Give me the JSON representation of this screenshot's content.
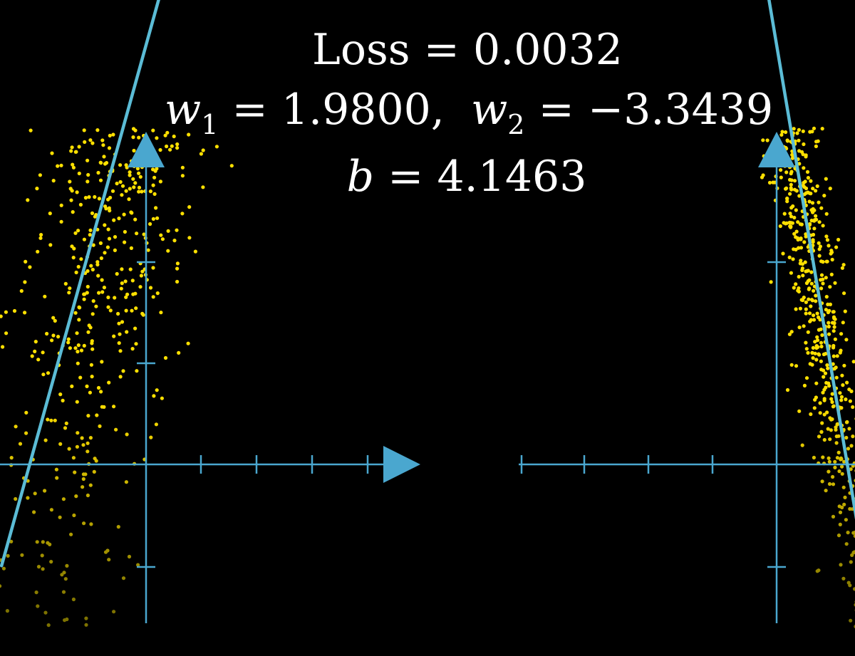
{
  "equations": {
    "loss_label": "Loss",
    "loss_value": "0.0032",
    "w1_var": "w",
    "w1_sub": "1",
    "w1_value": "1.9800,",
    "w2_var": "w",
    "w2_sub": "2",
    "w2_value": "−3.3439",
    "b_var": "b",
    "b_value": "4.1463",
    "equals": "="
  },
  "colors": {
    "background": "#000000",
    "axis": "#4aa7cf",
    "fit_line": "#5bbcd6",
    "point_bright": "#ffe000",
    "point_dim": "#8a7a00",
    "text": "#ffffff"
  },
  "chart_data": [
    {
      "type": "scatter",
      "title": "",
      "xlabel": "",
      "ylabel": "",
      "grid": false,
      "xlim": [
        -2.6,
        4.9
      ],
      "ylim": [
        -3,
        6.5
      ],
      "cloud": {
        "mean_x": 0.1,
        "sd_x": 1.3,
        "noise_sd": 1.7,
        "points": 1400
      },
      "fit_line": {
        "slope": 1.98,
        "intercept": 4.1463,
        "x_range": [
          -2.6,
          4.9
        ]
      }
    },
    {
      "type": "scatter",
      "title": "",
      "xlabel": "",
      "ylabel": "",
      "grid": false,
      "xlim": [
        -4.5,
        1.4
      ],
      "ylim": [
        -3,
        6.5
      ],
      "cloud": {
        "mean_x": 0.1,
        "sd_x": 1.0,
        "noise_sd": 0.9,
        "points": 1400
      },
      "fit_line": {
        "slope": -3.3439,
        "intercept": 4.1463,
        "x_range": [
          -4.5,
          1.4
        ]
      }
    }
  ]
}
